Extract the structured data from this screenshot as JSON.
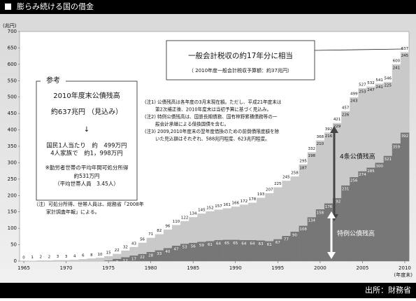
{
  "chart_data": {
    "type": "bar",
    "stacked": true,
    "title": "膨らみ続ける国の借金",
    "y_label": "(兆円)",
    "x_label": "(年度末)",
    "source": "出所：財務省",
    "x": [
      1965,
      1966,
      1967,
      1968,
      1969,
      1970,
      1971,
      1972,
      1973,
      1974,
      1975,
      1976,
      1977,
      1978,
      1979,
      1980,
      1981,
      1982,
      1983,
      1984,
      1985,
      1986,
      1987,
      1988,
      1989,
      1990,
      1991,
      1992,
      1993,
      1994,
      1995,
      1996,
      1997,
      1998,
      1999,
      2000,
      2001,
      2002,
      2003,
      2004,
      2005,
      2006,
      2007,
      2008,
      2009,
      2010
    ],
    "xlim": [
      1964.5,
      2010.5
    ],
    "xticks": [
      1965,
      1970,
      1975,
      1980,
      1985,
      1990,
      1995,
      2000,
      2005,
      2010
    ],
    "ylim": [
      0,
      700
    ],
    "yticks": [
      0,
      50,
      100,
      150,
      200,
      250,
      300,
      350,
      400,
      450,
      500,
      550,
      600,
      650,
      700
    ],
    "series": [
      {
        "name": "特例公債残高",
        "color": "#777777",
        "values": [
          0,
          0,
          0,
          0,
          0,
          0,
          0,
          0,
          0,
          0,
          2,
          7,
          12,
          17,
          22,
          28,
          33,
          40,
          47,
          53,
          56,
          59,
          61,
          64,
          65,
          65,
          64,
          64,
          63,
          61,
          67,
          77,
          90,
          108,
          134,
          158,
          176,
          192,
          231,
          256,
          274,
          285,
          300,
          321,
          359,
          392
        ]
      },
      {
        "name": "4条公債残高",
        "color": "#c9c9c9",
        "values": [
          0,
          1,
          2,
          2,
          3,
          3,
          4,
          6,
          8,
          10,
          13,
          15,
          20,
          26,
          34,
          43,
          49,
          56,
          63,
          69,
          78,
          86,
          91,
          93,
          96,
          101,
          108,
          114,
          130,
          146,
          158,
          168,
          168,
          187,
          198,
          210,
          216,
          229,
          226,
          243,
          253,
          247,
          241,
          225,
          241,
          245
        ]
      }
    ],
    "total_labels": [
      0,
      1,
      2,
      2,
      3,
      3,
      4,
      6,
      8,
      10,
      15,
      22,
      32,
      43,
      56,
      71,
      82,
      96,
      110,
      122,
      134,
      145,
      152,
      157,
      161,
      166,
      172,
      178,
      193,
      207,
      225,
      245,
      258,
      295,
      332,
      368,
      392,
      421,
      457,
      499,
      527,
      532,
      541,
      546,
      600,
      637
    ],
    "annotations": {
      "tax_box": {
        "title": "一般会計税収の約17年分に相当",
        "sub": "（ 2010年度一般会計税収予算額：約37兆円）"
      },
      "reference": {
        "heading": "参考",
        "lines": [
          "2010年度末公債残高",
          "約637兆円 （見込み）",
          "↓",
          "国民1人当たり　約　499万円",
          "4人家族で　約1，998万円",
          "※勤労者世帯の平均年間可処分所得",
          "約531万円",
          "（平均世帯人員　3.45人）"
        ]
      },
      "left_note": [
        "（注）可処分所得、世帯人員は、総務省「2008年",
        "家計調査年報」による。"
      ],
      "notes": [
        "(注1) 公債残高は各年度の3月末現在額。ただし、平成21年度末は",
        "第2次補正後、2010年度末は当初予算に基づく見込み。",
        "(注2) 特例公債残高は、国鉄長期債務、国有林野累積債務等の一",
        "般会計承継による借換国債を含む。",
        "(注3) 2009,2010年度末の翌年度借換のための前倒債限度額を除",
        "いた見込額はそれぞれ、588兆円程度、623兆円程度。"
      ]
    }
  }
}
